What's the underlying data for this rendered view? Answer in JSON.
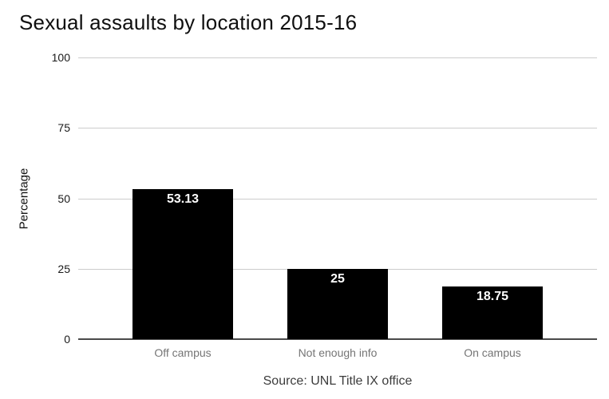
{
  "chart_data": {
    "type": "bar",
    "title": "Sexual assaults by location 2015-16",
    "categories": [
      "Off campus",
      "Not enough info",
      "On campus"
    ],
    "values": [
      53.13,
      25,
      18.75
    ],
    "value_labels": [
      "53.13",
      "25",
      "18.75"
    ],
    "xlabel": "",
    "ylabel": "Percentage",
    "ylim": [
      0,
      100
    ],
    "yticks": [
      0,
      25,
      50,
      75,
      100
    ],
    "grid": true,
    "legend": "none",
    "source": "Source: UNL Title IX office",
    "colors": {
      "bar": "#000000",
      "value_label": "#ffffff",
      "gridline": "#cccccc",
      "axis_line": "#4a4a4a",
      "tick_label": "#1a1a1a",
      "category_label": "#757575",
      "title": "#0f0f0f",
      "source": "#3c3c3c",
      "background": "#ffffff"
    }
  }
}
